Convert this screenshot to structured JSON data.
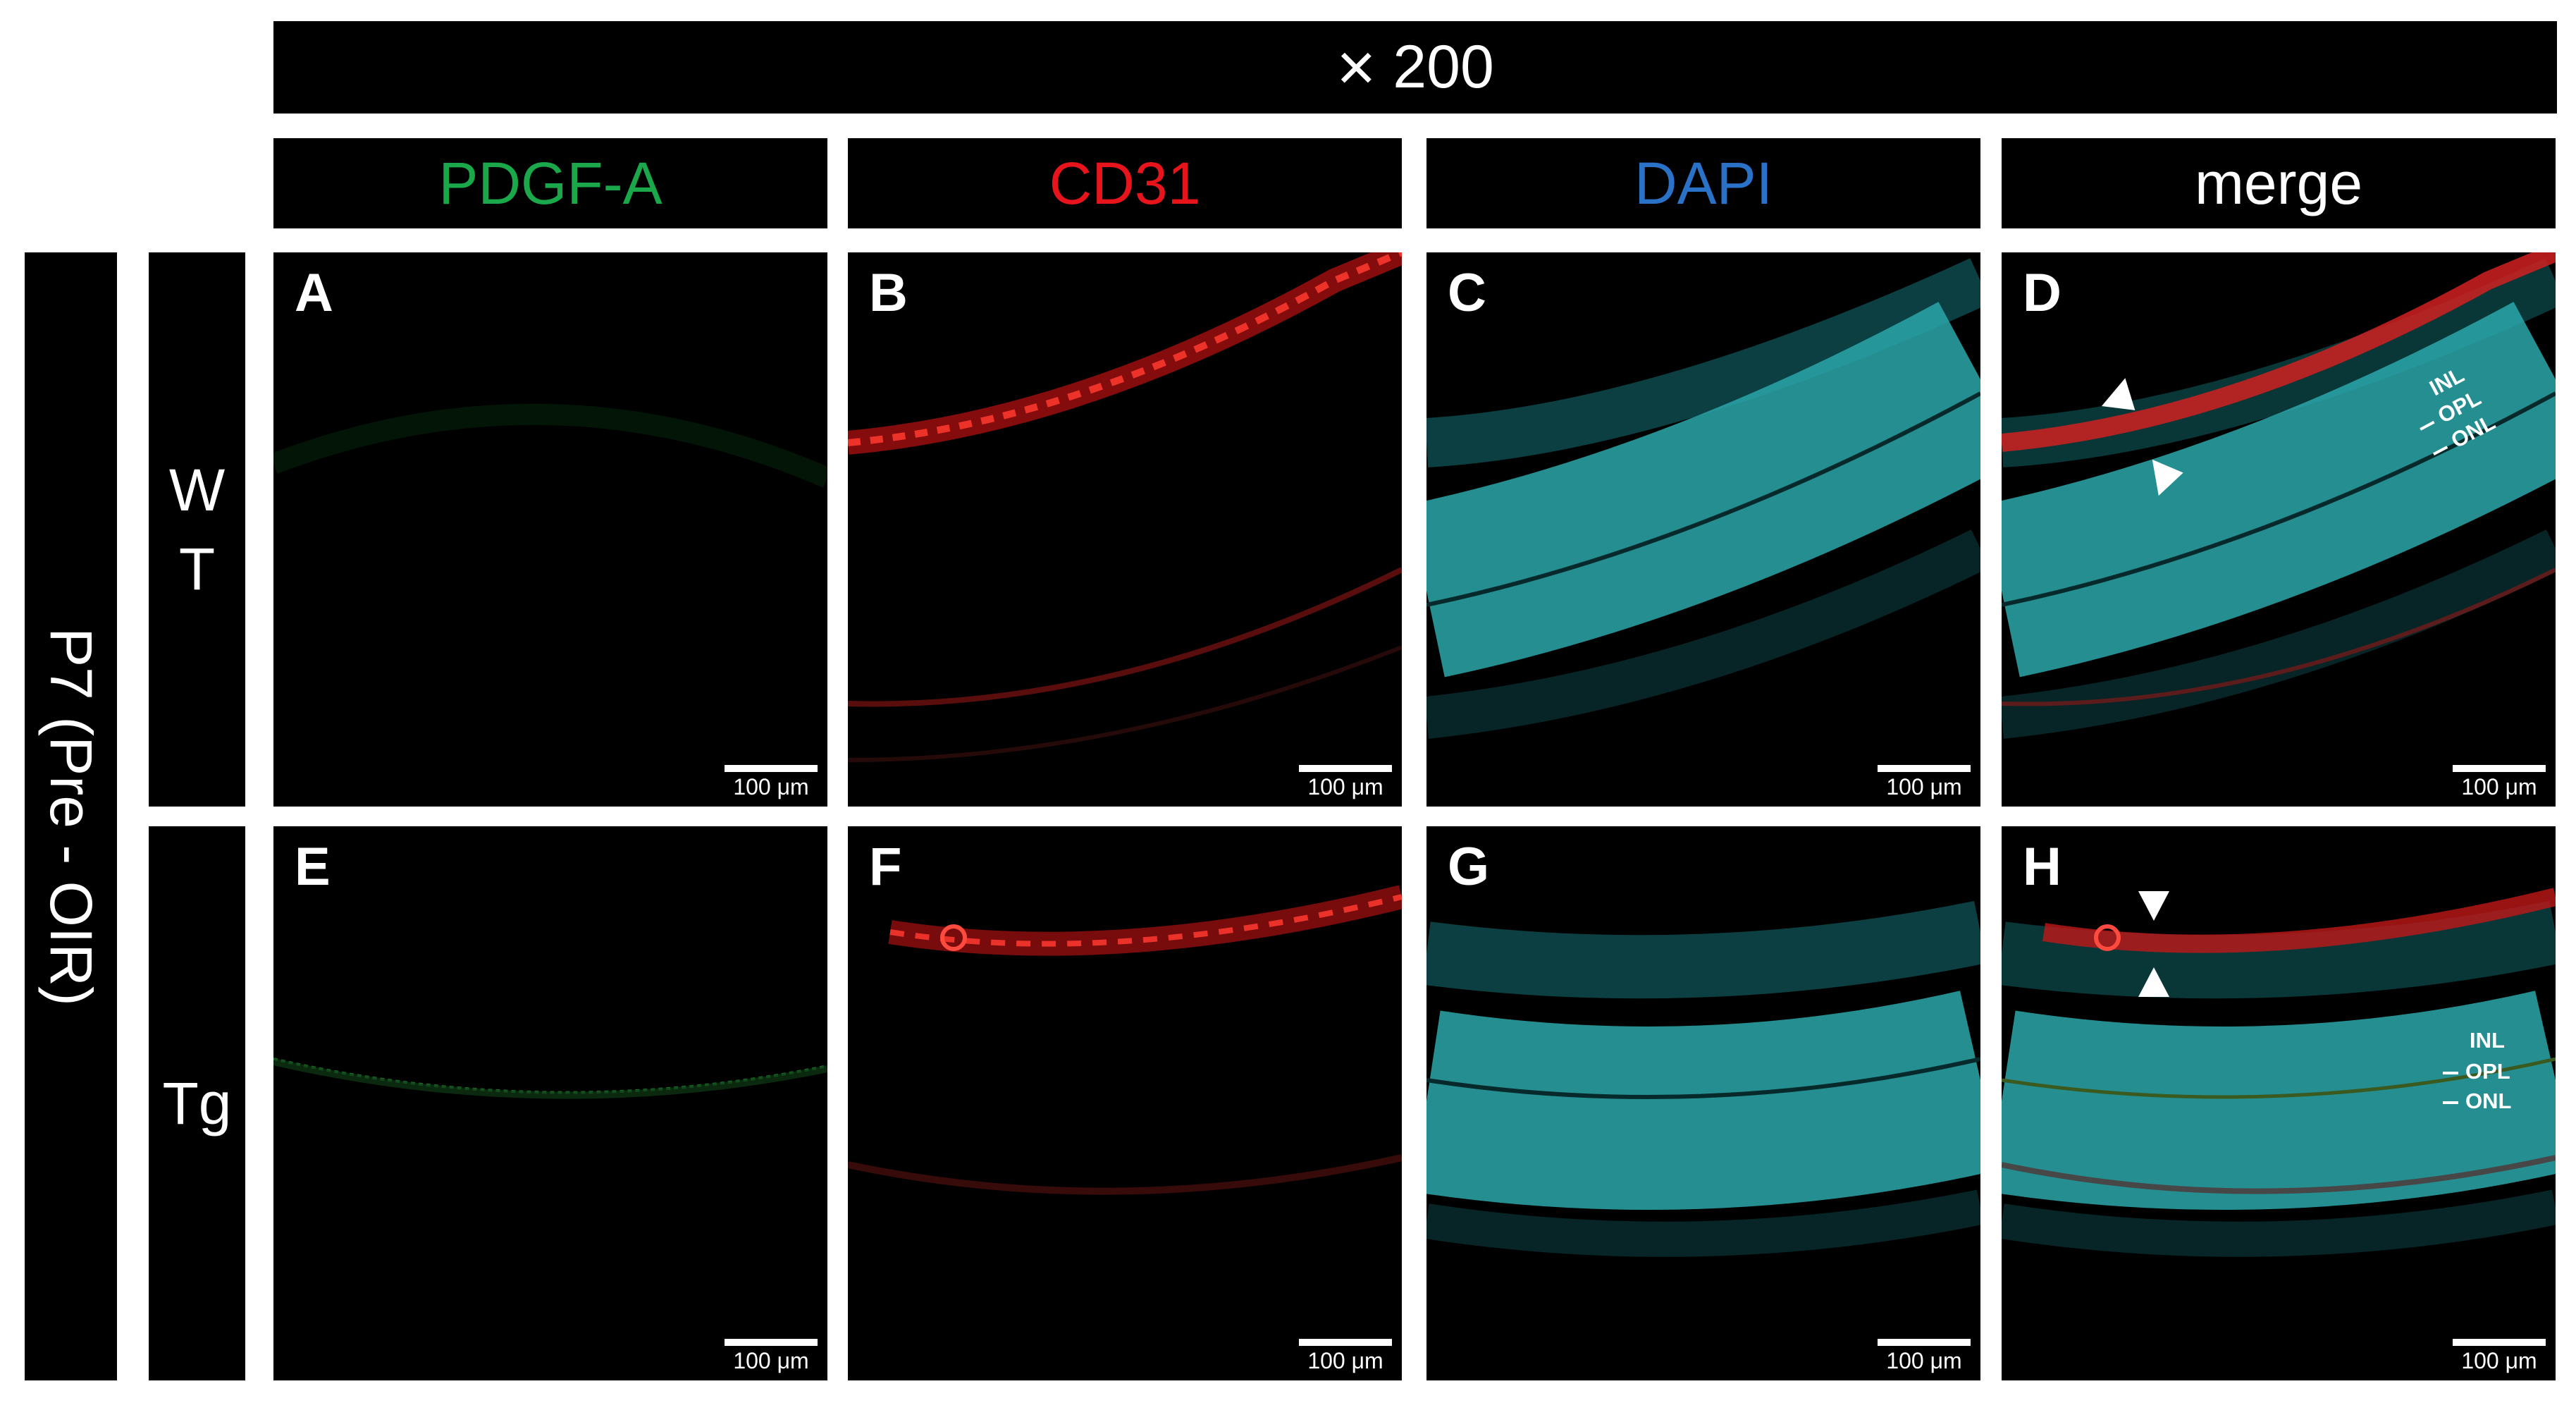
{
  "magnification": {
    "symbol": "×",
    "value": "200"
  },
  "columns": [
    {
      "label": "PDGF-A",
      "color": "#1aa84a"
    },
    {
      "label": "CD31",
      "color": "#e8141c"
    },
    {
      "label": "DAPI",
      "color": "#2a72c8"
    },
    {
      "label": "merge",
      "color": "#ffffff"
    }
  ],
  "group_label": "P7 (Pre - OIR)",
  "rows": [
    {
      "label_line1": "W",
      "label_line2": "T"
    },
    {
      "label": "Tg"
    }
  ],
  "panels": [
    {
      "letter": "A",
      "scale": "100 μm"
    },
    {
      "letter": "B",
      "scale": "100 μm"
    },
    {
      "letter": "C",
      "scale": "100 μm"
    },
    {
      "letter": "D",
      "scale": "100 μm"
    },
    {
      "letter": "E",
      "scale": "100 μm"
    },
    {
      "letter": "F",
      "scale": "100 μm"
    },
    {
      "letter": "G",
      "scale": "100 μm"
    },
    {
      "letter": "H",
      "scale": "100 μm"
    }
  ],
  "layer_labels": {
    "inl": "INL",
    "opl": "OPL",
    "onl": "ONL"
  }
}
